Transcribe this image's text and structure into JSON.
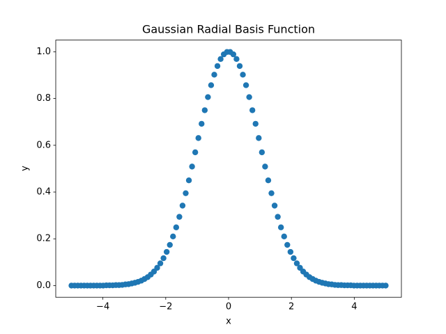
{
  "chart_data": {
    "type": "scatter",
    "title": "Gaussian Radial Basis Function",
    "xlabel": "x",
    "ylabel": "y",
    "color": "#1f77b4",
    "grid": false,
    "xlim": [
      -5.5,
      5.5
    ],
    "ylim": [
      -0.05,
      1.05
    ],
    "xticks": [
      {
        "value": -4,
        "label": "−4"
      },
      {
        "value": -2,
        "label": "−2"
      },
      0,
      2,
      4
    ],
    "yticks": [
      {
        "value": 0,
        "label": "0.0"
      },
      0.2,
      0.4,
      0.6,
      0.8,
      {
        "value": 1,
        "label": "1.0"
      }
    ],
    "x": [
      -5.0,
      -4.899,
      -4.798,
      -4.697,
      -4.596,
      -4.495,
      -4.394,
      -4.293,
      -4.192,
      -4.091,
      -3.99,
      -3.889,
      -3.788,
      -3.687,
      -3.586,
      -3.485,
      -3.384,
      -3.283,
      -3.182,
      -3.081,
      -2.98,
      -2.879,
      -2.778,
      -2.677,
      -2.576,
      -2.475,
      -2.374,
      -2.273,
      -2.172,
      -2.071,
      -1.97,
      -1.869,
      -1.768,
      -1.667,
      -1.566,
      -1.465,
      -1.364,
      -1.263,
      -1.162,
      -1.061,
      -0.96,
      -0.859,
      -0.758,
      -0.657,
      -0.556,
      -0.455,
      -0.354,
      -0.253,
      -0.152,
      -0.051,
      0.051,
      0.152,
      0.253,
      0.354,
      0.455,
      0.556,
      0.657,
      0.758,
      0.859,
      0.96,
      1.061,
      1.162,
      1.263,
      1.364,
      1.465,
      1.566,
      1.667,
      1.768,
      1.869,
      1.97,
      2.071,
      2.172,
      2.273,
      2.374,
      2.475,
      2.576,
      2.677,
      2.778,
      2.879,
      2.98,
      3.081,
      3.182,
      3.283,
      3.384,
      3.485,
      3.586,
      3.687,
      3.788,
      3.889,
      3.99,
      4.091,
      4.192,
      4.293,
      4.394,
      4.495,
      4.596,
      4.697,
      4.798,
      4.899,
      5.0
    ],
    "values": [
      0,
      0,
      0,
      0,
      0,
      0,
      0,
      0,
      0,
      0,
      0,
      0.001,
      0.001,
      0.001,
      0.002,
      0.002,
      0.003,
      0.005,
      0.006,
      0.009,
      0.012,
      0.016,
      0.021,
      0.028,
      0.036,
      0.047,
      0.06,
      0.076,
      0.095,
      0.117,
      0.144,
      0.174,
      0.21,
      0.249,
      0.294,
      0.342,
      0.395,
      0.45,
      0.509,
      0.57,
      0.631,
      0.692,
      0.75,
      0.806,
      0.857,
      0.902,
      0.939,
      0.969,
      0.989,
      0.999,
      0.999,
      0.989,
      0.969,
      0.939,
      0.902,
      0.857,
      0.806,
      0.75,
      0.692,
      0.631,
      0.57,
      0.509,
      0.45,
      0.395,
      0.342,
      0.294,
      0.249,
      0.21,
      0.174,
      0.144,
      0.117,
      0.095,
      0.076,
      0.06,
      0.047,
      0.036,
      0.028,
      0.021,
      0.016,
      0.012,
      0.009,
      0.006,
      0.005,
      0.003,
      0.002,
      0.002,
      0.001,
      0.001,
      0.001,
      0,
      0,
      0,
      0,
      0,
      0,
      0,
      0,
      0,
      0,
      0
    ]
  }
}
